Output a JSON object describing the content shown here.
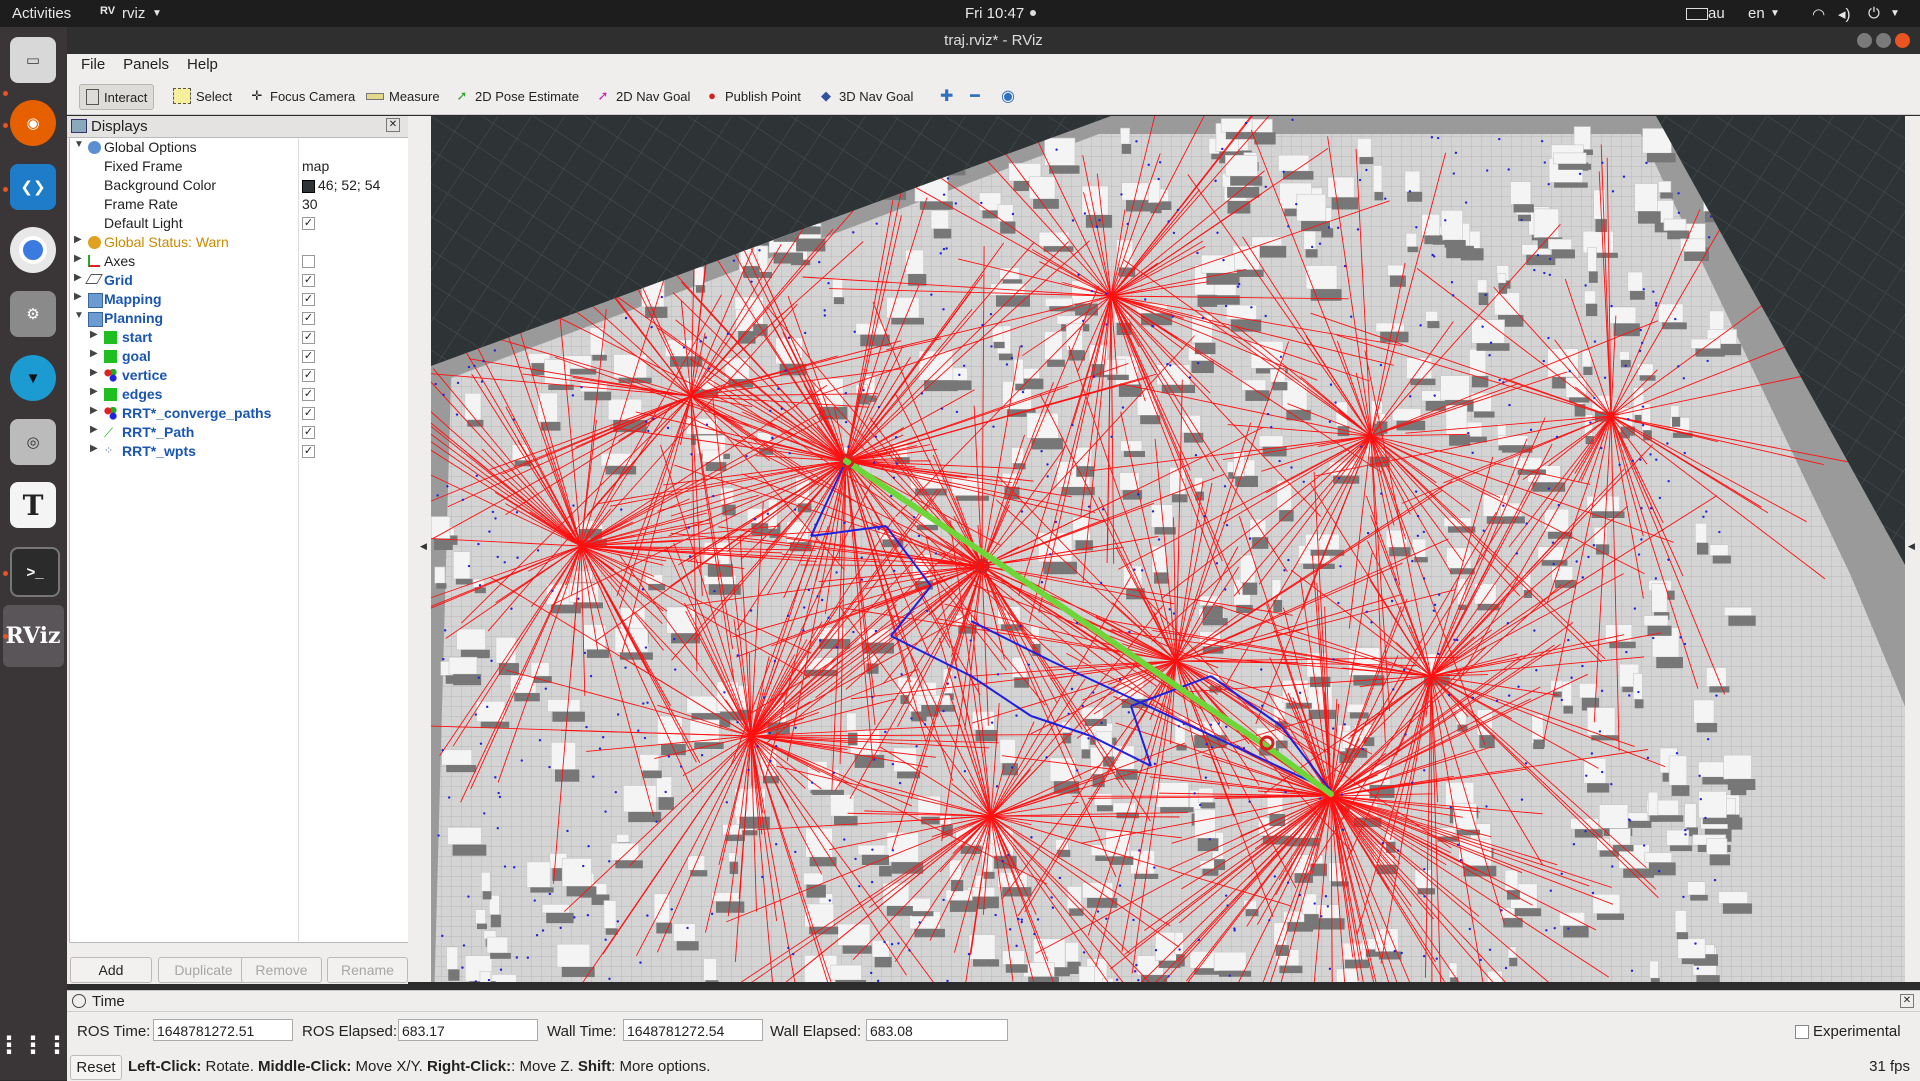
{
  "topbar": {
    "activities": "Activities",
    "app": "rviz",
    "clock": "Fri 10:47",
    "keyboard": "au",
    "lang": "en"
  },
  "window": {
    "title": "traj.rviz* - RViz"
  },
  "menu": {
    "file": "File",
    "panels": "Panels",
    "help": "Help"
  },
  "toolbar": {
    "interact": "Interact",
    "select": "Select",
    "focus_camera": "Focus Camera",
    "measure": "Measure",
    "pose_estimate": "2D Pose Estimate",
    "nav_goal": "2D Nav Goal",
    "publish_point": "Publish Point",
    "nav_goal_3d": "3D Nav Goal"
  },
  "displays": {
    "title": "Displays",
    "global_options": "Global Options",
    "fixed_frame_label": "Fixed Frame",
    "fixed_frame_value": "map",
    "bg_color_label": "Background Color",
    "bg_color_value": "46; 52; 54",
    "frame_rate_label": "Frame Rate",
    "frame_rate_value": "30",
    "default_light_label": "Default Light",
    "global_status": "Global Status: Warn",
    "axes": "Axes",
    "grid": "Grid",
    "mapping": "Mapping",
    "planning": "Planning",
    "start": "start",
    "goal": "goal",
    "vertice": "vertice",
    "edges": "edges",
    "converge": "RRT*_converge_paths",
    "path": "RRT*_Path",
    "wpts": "RRT*_wpts"
  },
  "panel_buttons": {
    "add": "Add",
    "duplicate": "Duplicate",
    "remove": "Remove",
    "rename": "Rename"
  },
  "time": {
    "title": "Time",
    "ros_time_label": "ROS Time:",
    "ros_time": "1648781272.51",
    "ros_elapsed_label": "ROS Elapsed:",
    "ros_elapsed": "683.17",
    "wall_time_label": "Wall Time:",
    "wall_time": "1648781272.54",
    "wall_elapsed_label": "Wall Elapsed:",
    "wall_elapsed": "683.08",
    "experimental": "Experimental",
    "reset": "Reset",
    "hint_lc": "Left-Click:",
    "hint_lc_t": " Rotate. ",
    "hint_mc": "Middle-Click:",
    "hint_mc_t": " Move X/Y. ",
    "hint_rc": "Right-Click:",
    "hint_rc_t": ": Move Z. ",
    "hint_sh": "Shift",
    "hint_sh_t": ": More options.",
    "fps": "31 fps"
  },
  "colors": {
    "bg": "#2e3436",
    "accent": "#e95420",
    "path": "#2ecc40",
    "tree": "#ff0000",
    "edges": "#2222ff"
  }
}
